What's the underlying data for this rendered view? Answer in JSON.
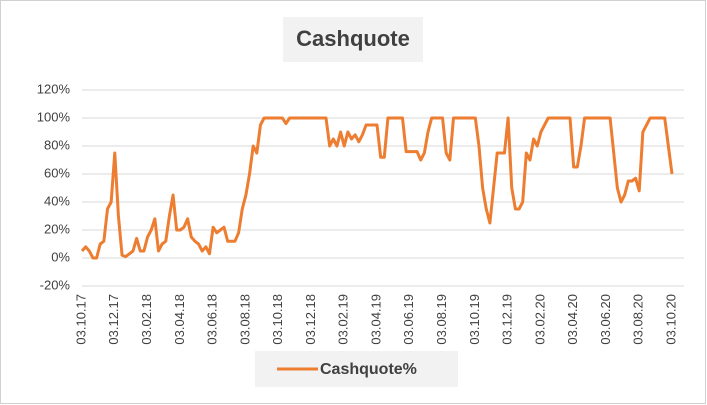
{
  "chart_data": {
    "type": "line",
    "title": "Cashquote",
    "categories": [
      "03.10.17",
      null,
      null,
      null,
      null,
      null,
      null,
      null,
      null,
      "03.12.17",
      null,
      null,
      null,
      null,
      null,
      null,
      null,
      null,
      "03.02.18",
      null,
      null,
      null,
      null,
      null,
      null,
      null,
      null,
      "03.04.18",
      null,
      null,
      null,
      null,
      null,
      null,
      null,
      null,
      "03.06.18",
      null,
      null,
      null,
      null,
      null,
      null,
      null,
      null,
      "03.08.18",
      null,
      null,
      null,
      null,
      null,
      null,
      null,
      null,
      "03.10.18",
      null,
      null,
      null,
      null,
      null,
      null,
      null,
      null,
      "03.12.18",
      null,
      null,
      null,
      null,
      null,
      null,
      null,
      null,
      "03.02.19",
      null,
      null,
      null,
      null,
      null,
      null,
      null,
      null,
      "03.04.19",
      null,
      null,
      null,
      null,
      null,
      null,
      null,
      null,
      "03.06.19",
      null,
      null,
      null,
      null,
      null,
      null,
      null,
      null,
      "03.08.19",
      null,
      null,
      null,
      null,
      null,
      null,
      null,
      null,
      "03.10.19",
      null,
      null,
      null,
      null,
      null,
      null,
      null,
      null,
      "03.12.19",
      null,
      null,
      null,
      null,
      null,
      null,
      null,
      null,
      "03.02.20",
      null,
      null,
      null,
      null,
      null,
      null,
      null,
      null,
      "03.04.20",
      null,
      null,
      null,
      null,
      null,
      null,
      null,
      null,
      "03.06.20",
      null,
      null,
      null,
      null,
      null,
      null,
      null,
      null,
      "03.08.20",
      null,
      null,
      null,
      null,
      null,
      null,
      null,
      null,
      "03.10.20"
    ],
    "series": [
      {
        "name": "Cashquote%",
        "color": "#ed7d31",
        "values": [
          5,
          8,
          5,
          0,
          0,
          10,
          12,
          35,
          40,
          75,
          30,
          2,
          1,
          3,
          5,
          14,
          5,
          5,
          15,
          20,
          28,
          5,
          10,
          12,
          30,
          45,
          20,
          20,
          22,
          28,
          15,
          12,
          10,
          5,
          8,
          3,
          22,
          18,
          20,
          22,
          12,
          12,
          12,
          18,
          35,
          45,
          60,
          80,
          75,
          95,
          100,
          100,
          100,
          100,
          100,
          100,
          96,
          100,
          100,
          100,
          100,
          100,
          100,
          100,
          100,
          100,
          100,
          100,
          80,
          85,
          80,
          90,
          80,
          90,
          85,
          88,
          83,
          88,
          95,
          95,
          95,
          95,
          72,
          72,
          100,
          100,
          100,
          100,
          100,
          76,
          76,
          76,
          76,
          70,
          75,
          90,
          100,
          100,
          100,
          100,
          75,
          70,
          100,
          100,
          100,
          100,
          100,
          100,
          100,
          80,
          50,
          35,
          25,
          50,
          75,
          75,
          75,
          100,
          50,
          35,
          35,
          40,
          75,
          70,
          85,
          80,
          90,
          95,
          100,
          100,
          100,
          100,
          100,
          100,
          100,
          65,
          65,
          80,
          100,
          100,
          100,
          100,
          100,
          100,
          100,
          100,
          75,
          50,
          40,
          45,
          55,
          55,
          57,
          48,
          90,
          95,
          100,
          100,
          100,
          100,
          100,
          80,
          60
        ]
      }
    ],
    "ylim": [
      -20,
      120
    ],
    "yticks": [
      {
        "value": -20,
        "label": "-20%"
      },
      {
        "value": 0,
        "label": "0%"
      },
      {
        "value": 20,
        "label": "20%"
      },
      {
        "value": 40,
        "label": "40%"
      },
      {
        "value": 60,
        "label": "60%"
      },
      {
        "value": 80,
        "label": "80%"
      },
      {
        "value": 100,
        "label": "100%"
      },
      {
        "value": 120,
        "label": "120%"
      }
    ],
    "grid": true,
    "legend": "bottom"
  }
}
